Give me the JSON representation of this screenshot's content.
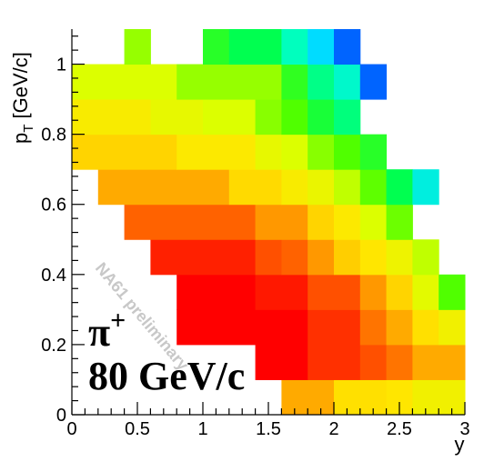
{
  "chart_data": {
    "type": "heatmap",
    "title": "",
    "xlabel": "y",
    "ylabel_main": "p",
    "ylabel_sub": "T",
    "ylabel_unit": " [GeV/c]",
    "xlim": [
      0,
      3
    ],
    "ylim": [
      0,
      1.1
    ],
    "xticks": [
      {
        "value": 0,
        "label": "0"
      },
      {
        "value": 0.5,
        "label": "0.5"
      },
      {
        "value": 1,
        "label": "1"
      },
      {
        "value": 1.5,
        "label": "1.5"
      },
      {
        "value": 2,
        "label": "2"
      },
      {
        "value": 2.5,
        "label": "2.5"
      },
      {
        "value": 3,
        "label": "3"
      }
    ],
    "yticks": [
      {
        "value": 0,
        "label": "0"
      },
      {
        "value": 0.2,
        "label": "0.2"
      },
      {
        "value": 0.4,
        "label": "0.4"
      },
      {
        "value": 0.6,
        "label": "0.6"
      },
      {
        "value": 0.8,
        "label": "0.8"
      },
      {
        "value": 1,
        "label": "1"
      }
    ],
    "color_scale": "rainbow",
    "z_range": [
      0,
      1
    ],
    "rows": [
      {
        "pt_range": [
          0.0,
          0.1
        ],
        "cells": [
          {
            "y": [
              1.6,
              2.0
            ],
            "z": 0.2
          },
          {
            "y": [
              2.0,
              2.2
            ],
            "z": 0.29
          },
          {
            "y": [
              2.2,
              2.4
            ],
            "z": 0.29
          },
          {
            "y": [
              2.4,
              2.6
            ],
            "z": 0.3
          },
          {
            "y": [
              2.6,
              2.8
            ],
            "z": 0.34
          },
          {
            "y": [
              2.8,
              3.0
            ],
            "z": 0.34
          }
        ]
      },
      {
        "pt_range": [
          0.1,
          0.2
        ],
        "cells": [
          {
            "y": [
              1.4,
              1.8
            ],
            "z": 0.0
          },
          {
            "y": [
              1.8,
              2.2
            ],
            "z": 0.06
          },
          {
            "y": [
              2.2,
              2.4
            ],
            "z": 0.1
          },
          {
            "y": [
              2.4,
              2.6
            ],
            "z": 0.14
          },
          {
            "y": [
              2.6,
              2.8
            ],
            "z": 0.2
          },
          {
            "y": [
              2.8,
              3.0
            ],
            "z": 0.2
          }
        ]
      },
      {
        "pt_range": [
          0.2,
          0.3
        ],
        "cells": [
          {
            "y": [
              0.8,
              1.8
            ],
            "z": 0.0
          },
          {
            "y": [
              1.8,
              2.2
            ],
            "z": 0.06
          },
          {
            "y": [
              2.2,
              2.4
            ],
            "z": 0.14
          },
          {
            "y": [
              2.4,
              2.6
            ],
            "z": 0.2
          },
          {
            "y": [
              2.6,
              2.8
            ],
            "z": 0.29
          },
          {
            "y": [
              2.8,
              3.0
            ],
            "z": 0.34
          }
        ]
      },
      {
        "pt_range": [
          0.3,
          0.4
        ],
        "cells": [
          {
            "y": [
              0.8,
              1.4
            ],
            "z": 0.0
          },
          {
            "y": [
              1.4,
              1.8
            ],
            "z": 0.03
          },
          {
            "y": [
              1.8,
              2.2
            ],
            "z": 0.1
          },
          {
            "y": [
              2.2,
              2.4
            ],
            "z": 0.18
          },
          {
            "y": [
              2.4,
              2.6
            ],
            "z": 0.27
          },
          {
            "y": [
              2.6,
              2.8
            ],
            "z": 0.38
          },
          {
            "y": [
              2.8,
              3.0
            ],
            "z": 0.5
          }
        ]
      },
      {
        "pt_range": [
          0.4,
          0.5
        ],
        "cells": [
          {
            "y": [
              0.6,
              1.4
            ],
            "z": 0.04
          },
          {
            "y": [
              1.4,
              1.6
            ],
            "z": 0.1
          },
          {
            "y": [
              1.6,
              1.8
            ],
            "z": 0.12
          },
          {
            "y": [
              1.8,
              2.0
            ],
            "z": 0.18
          },
          {
            "y": [
              2.0,
              2.2
            ],
            "z": 0.26
          },
          {
            "y": [
              2.2,
              2.4
            ],
            "z": 0.3
          },
          {
            "y": [
              2.4,
              2.6
            ],
            "z": 0.35
          },
          {
            "y": [
              2.6,
              2.8
            ],
            "z": 0.42
          }
        ]
      },
      {
        "pt_range": [
          0.5,
          0.6
        ],
        "cells": [
          {
            "y": [
              0.4,
              1.4
            ],
            "z": 0.12
          },
          {
            "y": [
              1.4,
              1.8
            ],
            "z": 0.18
          },
          {
            "y": [
              1.8,
              2.0
            ],
            "z": 0.27
          },
          {
            "y": [
              2.0,
              2.2
            ],
            "z": 0.31
          },
          {
            "y": [
              2.2,
              2.4
            ],
            "z": 0.4
          },
          {
            "y": [
              2.4,
              2.6
            ],
            "z": 0.48
          }
        ]
      },
      {
        "pt_range": [
          0.6,
          0.7
        ],
        "cells": [
          {
            "y": [
              0.2,
              1.2
            ],
            "z": 0.2
          },
          {
            "y": [
              1.2,
              1.6
            ],
            "z": 0.28
          },
          {
            "y": [
              1.6,
              1.8
            ],
            "z": 0.32
          },
          {
            "y": [
              1.8,
              2.0
            ],
            "z": 0.36
          },
          {
            "y": [
              2.0,
              2.2
            ],
            "z": 0.42
          },
          {
            "y": [
              2.2,
              2.4
            ],
            "z": 0.49
          },
          {
            "y": [
              2.4,
              2.6
            ],
            "z": 0.6
          },
          {
            "y": [
              2.6,
              2.8
            ],
            "z": 0.75
          }
        ]
      },
      {
        "pt_range": [
          0.7,
          0.8
        ],
        "cells": [
          {
            "y": [
              0.0,
              0.8
            ],
            "z": 0.27
          },
          {
            "y": [
              0.8,
              1.4
            ],
            "z": 0.31
          },
          {
            "y": [
              1.4,
              1.6
            ],
            "z": 0.37
          },
          {
            "y": [
              1.6,
              1.8
            ],
            "z": 0.4
          },
          {
            "y": [
              1.8,
              2.0
            ],
            "z": 0.46
          },
          {
            "y": [
              2.0,
              2.2
            ],
            "z": 0.5
          },
          {
            "y": [
              2.2,
              2.4
            ],
            "z": 0.55
          }
        ]
      },
      {
        "pt_range": [
          0.8,
          0.9
        ],
        "cells": [
          {
            "y": [
              0.0,
              0.6
            ],
            "z": 0.32
          },
          {
            "y": [
              0.6,
              1.0
            ],
            "z": 0.37
          },
          {
            "y": [
              1.0,
              1.4
            ],
            "z": 0.4
          },
          {
            "y": [
              1.4,
              1.6
            ],
            "z": 0.46
          },
          {
            "y": [
              1.6,
              1.8
            ],
            "z": 0.5
          },
          {
            "y": [
              1.8,
              2.0
            ],
            "z": 0.57
          },
          {
            "y": [
              2.0,
              2.2
            ],
            "z": 0.64
          }
        ]
      },
      {
        "pt_range": [
          0.9,
          1.0
        ],
        "cells": [
          {
            "y": [
              0.0,
              0.8
            ],
            "z": 0.4
          },
          {
            "y": [
              0.8,
              1.6
            ],
            "z": 0.45
          },
          {
            "y": [
              1.6,
              1.8
            ],
            "z": 0.54
          },
          {
            "y": [
              1.8,
              2.0
            ],
            "z": 0.65
          },
          {
            "y": [
              2.0,
              2.2
            ],
            "z": 0.72
          },
          {
            "y": [
              2.2,
              2.4
            ],
            "z": 0.9
          }
        ]
      },
      {
        "pt_range": [
          1.0,
          1.1
        ],
        "cells": [
          {
            "y": [
              0.4,
              0.6
            ],
            "z": 0.45
          },
          {
            "y": [
              1.0,
              1.2
            ],
            "z": 0.55
          },
          {
            "y": [
              1.2,
              1.6
            ],
            "z": 0.6
          },
          {
            "y": [
              1.6,
              1.8
            ],
            "z": 0.7
          },
          {
            "y": [
              1.8,
              2.0
            ],
            "z": 0.8
          },
          {
            "y": [
              2.0,
              2.2
            ],
            "z": 0.9
          }
        ]
      }
    ]
  },
  "annotations": {
    "particle_base": "π",
    "particle_charge": "+",
    "beam_energy": "80 GeV/c",
    "watermark": "NA61 preliminary"
  }
}
